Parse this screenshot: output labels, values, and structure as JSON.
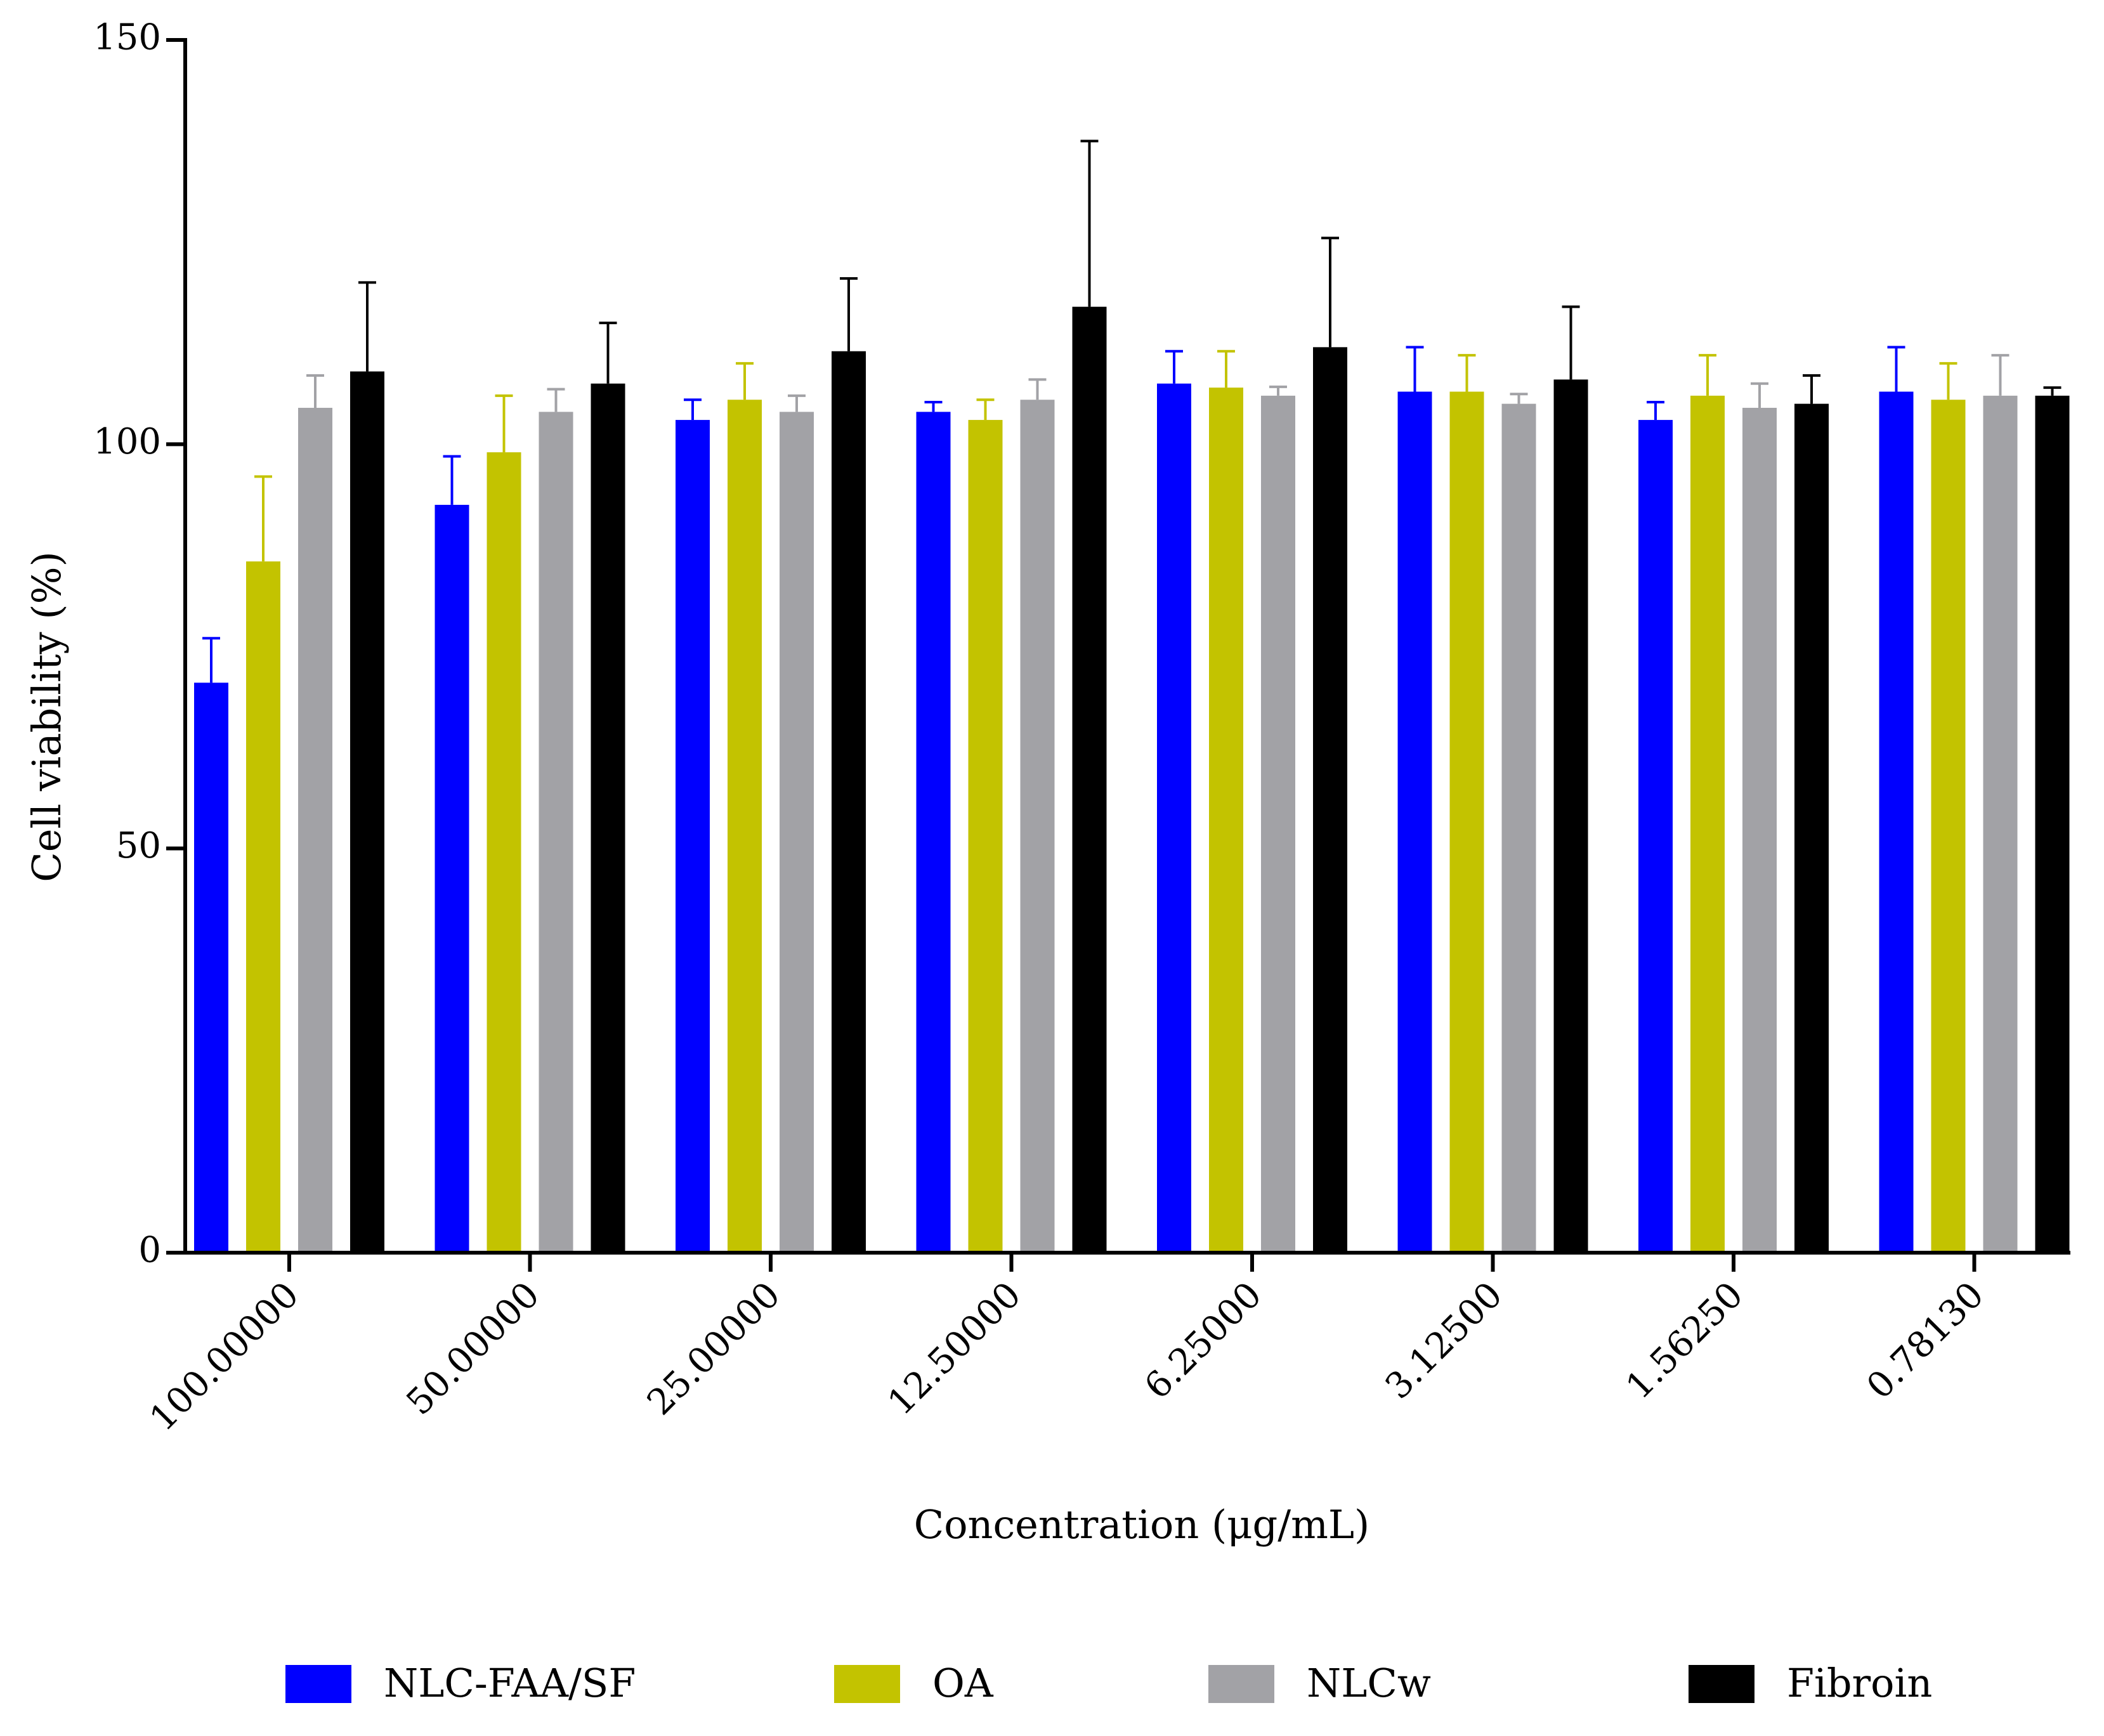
{
  "chart_data": {
    "type": "bar",
    "title": "",
    "xlabel": "Concentration (μg/mL)",
    "ylabel": "Cell viability (%)",
    "ylim": [
      0,
      150
    ],
    "yticks": [
      0,
      50,
      100,
      150
    ],
    "categories": [
      "100.00000",
      "50.00000",
      "25.00000",
      "12.50000",
      "6.25000",
      "3.12500",
      "1.56250",
      "0.78130"
    ],
    "series": [
      {
        "name": "NLC-FAA/SF",
        "color": "#0000ff",
        "values": [
          70.5,
          92.5,
          103,
          104,
          107.5,
          106.5,
          103,
          106.5
        ],
        "errors": [
          5.5,
          6,
          2.5,
          1.2,
          4,
          5.5,
          2.2,
          5.5
        ]
      },
      {
        "name": "OA",
        "color": "#c3c300",
        "values": [
          85.5,
          99,
          105.5,
          103,
          107,
          106.5,
          106,
          105.5
        ],
        "errors": [
          10.5,
          7,
          4.5,
          2.5,
          4.5,
          4.5,
          5,
          4.5
        ]
      },
      {
        "name": "NLCw",
        "color": "#a2a2a6",
        "values": [
          104.5,
          104,
          104,
          105.5,
          106,
          105,
          104.5,
          106
        ],
        "errors": [
          4,
          2.8,
          2,
          2.5,
          1.1,
          1.2,
          3,
          5
        ]
      },
      {
        "name": "Fibroin",
        "color": "#000000",
        "values": [
          109,
          107.5,
          111.5,
          117,
          112,
          108,
          105,
          106
        ],
        "errors": [
          11,
          7.5,
          9,
          20.5,
          13.5,
          9,
          3.5,
          1
        ]
      }
    ],
    "legend_position": "bottom"
  }
}
